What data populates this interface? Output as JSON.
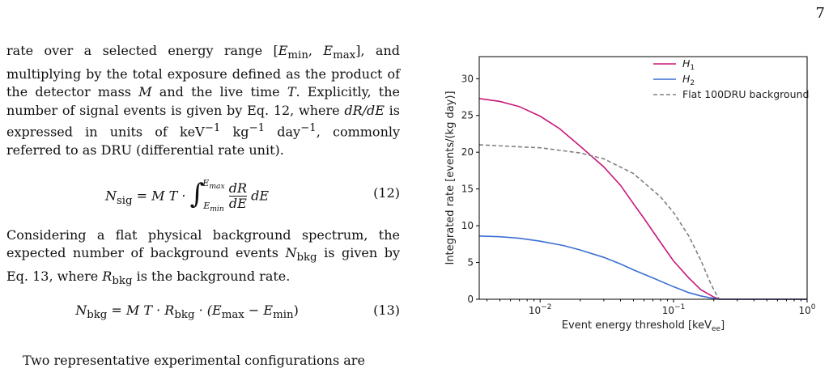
{
  "page_number": "7",
  "text": {
    "para1": {
      "t1": "rate over a selected energy range [",
      "m1": "E",
      "m1_sub": "min",
      "t2": ", ",
      "m2": "E",
      "m2_sub": "max",
      "t3": "], and multiplying by the total exposure defined as the product of the detector mass ",
      "m3": "M",
      "t4": " and the live time ",
      "m4": "T",
      "t5": ". Explicitly, the number of signal events is given by Eq. 12, where ",
      "m5": "dR/dE",
      "t6": " is expressed in units of keV",
      "s1": "−1",
      "t7": " kg",
      "s2": "−1",
      "t8": " day",
      "s3": "−1",
      "t9": ", commonly referred to as DRU (differential rate unit)."
    },
    "eq12": {
      "lhs": "N",
      "lhs_sub": "sig",
      "eqsign": " = M T · ",
      "upper": "E",
      "upper_sub": "max",
      "lower": "E",
      "lower_sub": "min",
      "frac_num": "dR",
      "frac_den": "dE",
      "tail": " dE",
      "number": "(12)"
    },
    "para2": {
      "t1": "Considering a flat physical background spectrum, the expected number of background events ",
      "m1": "N",
      "m1_sub": "bkg",
      "t2": " is given by Eq. 13, where ",
      "m2": "R",
      "m2_sub": "bkg",
      "t3": " is the background rate."
    },
    "eq13": {
      "lhs": "N",
      "lhs_sub": "bkg",
      "mid": " = M T · R",
      "mid_sub": "bkg",
      "paren1": " · (E",
      "p_sub1": "max",
      "minus": " − E",
      "p_sub2": "min",
      "close": ")",
      "number": "(13)"
    },
    "para3": "Two representative experimental configurations are"
  },
  "chart_data": {
    "type": "line",
    "xscale": "log",
    "xlim": [
      0.0035,
      1.0
    ],
    "ylim": [
      0,
      33
    ],
    "xlabel_main": "Event energy threshold [keV",
    "xlabel_sub": "ee",
    "xlabel_close": "]",
    "ylabel": "Integrated rate [events/(kg day)]",
    "x_ticks": [
      {
        "value": 0.01,
        "base": "10",
        "exp": "−2"
      },
      {
        "value": 0.1,
        "base": "10",
        "exp": "−1"
      },
      {
        "value": 1.0,
        "base": "10",
        "exp": "0"
      }
    ],
    "y_ticks": [
      "0",
      "5",
      "10",
      "15",
      "20",
      "25",
      "30"
    ],
    "grid": false,
    "legend_position": "top-right",
    "series": [
      {
        "name_main": "H",
        "name_sub": "1",
        "color": "#c8187a",
        "dash": "solid",
        "x": [
          0.0035,
          0.005,
          0.007,
          0.01,
          0.014,
          0.02,
          0.03,
          0.04,
          0.05,
          0.06,
          0.08,
          0.1,
          0.13,
          0.16,
          0.2,
          0.22,
          0.3,
          0.5,
          1.0
        ],
        "y": [
          27.3,
          26.9,
          26.2,
          24.9,
          23.2,
          20.8,
          18.0,
          15.5,
          13.0,
          11.0,
          7.7,
          5.2,
          2.9,
          1.3,
          0.3,
          0.0,
          0.0,
          0.0,
          0.0
        ]
      },
      {
        "name_main": "H",
        "name_sub": "2",
        "color": "#3b6fd4",
        "dash": "solid",
        "x": [
          0.0035,
          0.005,
          0.007,
          0.01,
          0.015,
          0.02,
          0.03,
          0.04,
          0.05,
          0.07,
          0.1,
          0.13,
          0.16,
          0.2,
          0.22,
          0.3,
          0.5,
          1.0
        ],
        "y": [
          8.6,
          8.5,
          8.3,
          7.9,
          7.3,
          6.7,
          5.7,
          4.8,
          4.0,
          2.9,
          1.7,
          0.9,
          0.45,
          0.1,
          0.0,
          0.0,
          0.0,
          0.0
        ]
      },
      {
        "name_main": "Flat 100DRU background",
        "name_sub": "",
        "color": "#808080",
        "dash": "dashed",
        "x": [
          0.0035,
          0.01,
          0.02,
          0.03,
          0.05,
          0.08,
          0.1,
          0.13,
          0.16,
          0.19,
          0.21,
          0.22,
          0.3,
          0.5,
          1.0
        ],
        "y": [
          21.0,
          20.6,
          19.9,
          19.1,
          17.1,
          13.9,
          11.8,
          8.6,
          5.3,
          2.1,
          0.6,
          0.0,
          0.0,
          0.0,
          0.0
        ]
      }
    ]
  }
}
